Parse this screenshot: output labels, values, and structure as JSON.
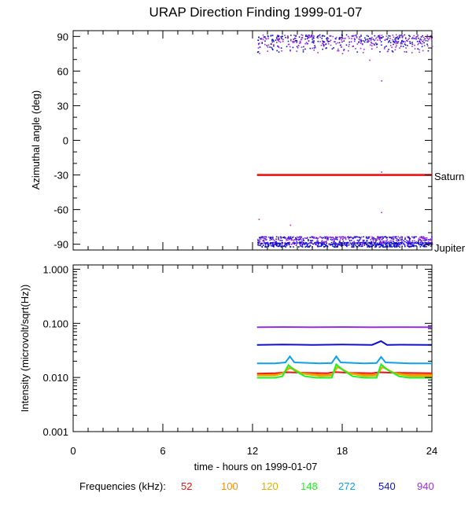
{
  "chart_data": [
    {
      "type": "scatter",
      "panel": "top",
      "title": "URAP Direction Finding  1999-01-07",
      "ylabel": "Azimuthal angle (deg)",
      "xlim": [
        0,
        24
      ],
      "ylim": [
        -95,
        95
      ],
      "yticks": [
        90,
        60,
        30,
        0,
        -30,
        -60,
        -90
      ],
      "ytick_labels": [
        "90",
        "60",
        "30",
        "0",
        "-30",
        "-60",
        "-90"
      ],
      "grid": false,
      "annotations": [
        {
          "text": "Saturn",
          "y": -30
        },
        {
          "text": "Jupiter",
          "y": -88
        }
      ],
      "series": [
        {
          "name": "Saturn",
          "x": [
            12.3,
            24
          ],
          "y": [
            -30,
            -30
          ]
        },
        {
          "name": "940",
          "kind": "scatter-band",
          "x": [
            12.3,
            24
          ],
          "y": [
            75,
            92
          ]
        },
        {
          "name": "540",
          "kind": "scatter-band",
          "x": [
            12.3,
            24
          ],
          "y": [
            -88,
            -92
          ]
        },
        {
          "name": "940",
          "kind": "scatter-band",
          "x": [
            12.3,
            24
          ],
          "y": [
            -83,
            -90
          ]
        }
      ],
      "outliers": [
        {
          "x": 20.6,
          "y": 52
        },
        {
          "x": 20.6,
          "y": -62
        },
        {
          "x": 20.6,
          "y": -27
        },
        {
          "x": 12.4,
          "y": -68
        },
        {
          "x": 14.5,
          "y": -73
        },
        {
          "x": 19.8,
          "y": 70
        }
      ]
    },
    {
      "type": "line",
      "panel": "bottom",
      "ylabel": "Intensity (microvolt/sqrt(Hz))",
      "xlabel": "time - hours on 1999-01-07",
      "xlim": [
        0,
        24
      ],
      "xticks": [
        0,
        6,
        12,
        18,
        24
      ],
      "xtick_labels": [
        "0",
        "6",
        "12",
        "18",
        "24"
      ],
      "yscale": "log",
      "ylim": [
        0.001,
        1.2
      ],
      "yticks": [
        1.0,
        0.1,
        0.01,
        0.001
      ],
      "ytick_labels": [
        "1.000",
        "0.100",
        "0.010",
        "0.001"
      ],
      "grid": false,
      "series": [
        {
          "name": "52",
          "x": [
            12.3,
            13.5,
            14.3,
            15.5,
            17.0,
            17.5,
            18.5,
            20.0,
            20.5,
            21.5,
            24
          ],
          "y": [
            0.0118,
            0.012,
            0.0125,
            0.0122,
            0.012,
            0.0126,
            0.0122,
            0.012,
            0.0125,
            0.0122,
            0.012
          ]
        },
        {
          "name": "100",
          "x": [
            12.3,
            13.5,
            14.0,
            14.5,
            15.3,
            16.5,
            17.3,
            17.7,
            18.5,
            19.5,
            20.3,
            20.7,
            21.5,
            22.5,
            24
          ],
          "y": [
            0.0112,
            0.0112,
            0.012,
            0.015,
            0.012,
            0.0112,
            0.0112,
            0.0155,
            0.012,
            0.0112,
            0.0112,
            0.0155,
            0.012,
            0.0112,
            0.0112
          ]
        },
        {
          "name": "120",
          "x": [
            12.3,
            13.5,
            14.0,
            14.5,
            15.3,
            16.5,
            17.3,
            17.7,
            18.5,
            19.5,
            20.3,
            20.7,
            21.5,
            22.5,
            24
          ],
          "y": [
            0.0108,
            0.0108,
            0.0118,
            0.0158,
            0.0118,
            0.0106,
            0.0108,
            0.016,
            0.0118,
            0.0106,
            0.0108,
            0.016,
            0.0118,
            0.0106,
            0.0106
          ]
        },
        {
          "name": "148",
          "x": [
            12.3,
            13.5,
            14.0,
            14.4,
            14.8,
            15.5,
            16.3,
            17.3,
            17.6,
            18.0,
            18.7,
            19.5,
            20.3,
            20.6,
            21.0,
            21.8,
            22.5,
            24
          ],
          "y": [
            0.0099,
            0.0099,
            0.0105,
            0.017,
            0.0135,
            0.0105,
            0.0099,
            0.0099,
            0.0175,
            0.014,
            0.0105,
            0.0099,
            0.0099,
            0.0175,
            0.014,
            0.0105,
            0.0099,
            0.0099
          ]
        },
        {
          "name": "272",
          "x": [
            12.3,
            13.5,
            14.2,
            14.5,
            14.8,
            16.5,
            17.3,
            17.6,
            17.9,
            19.5,
            20.3,
            20.6,
            20.9,
            22.5,
            24
          ],
          "y": [
            0.0182,
            0.0182,
            0.019,
            0.0245,
            0.019,
            0.0182,
            0.0185,
            0.0245,
            0.019,
            0.0182,
            0.0185,
            0.024,
            0.019,
            0.0182,
            0.0182
          ]
        },
        {
          "name": "540",
          "x": [
            12.3,
            14.0,
            16.0,
            18.0,
            20.0,
            20.6,
            21.0,
            22.0,
            24
          ],
          "y": [
            0.04,
            0.0405,
            0.04,
            0.0405,
            0.04,
            0.047,
            0.04,
            0.0402,
            0.04
          ]
        },
        {
          "name": "940",
          "x": [
            12.3,
            14.0,
            16.0,
            18.0,
            20.0,
            22.0,
            24
          ],
          "y": [
            0.085,
            0.0855,
            0.085,
            0.0855,
            0.085,
            0.0852,
            0.085
          ]
        }
      ]
    }
  ],
  "legend": {
    "title": "Frequencies (kHz):",
    "items": [
      {
        "label": "52",
        "color": "#ee1111"
      },
      {
        "label": "100",
        "color": "#ff8c00"
      },
      {
        "label": "120",
        "color": "#e0b000"
      },
      {
        "label": "148",
        "color": "#22ee22"
      },
      {
        "label": "272",
        "color": "#10a0e8"
      },
      {
        "label": "540",
        "color": "#1010cc"
      },
      {
        "label": "940",
        "color": "#9a2ee8"
      }
    ]
  },
  "colors": {
    "saturn_line": "#ee1111",
    "outlier": "#cc22cc"
  }
}
